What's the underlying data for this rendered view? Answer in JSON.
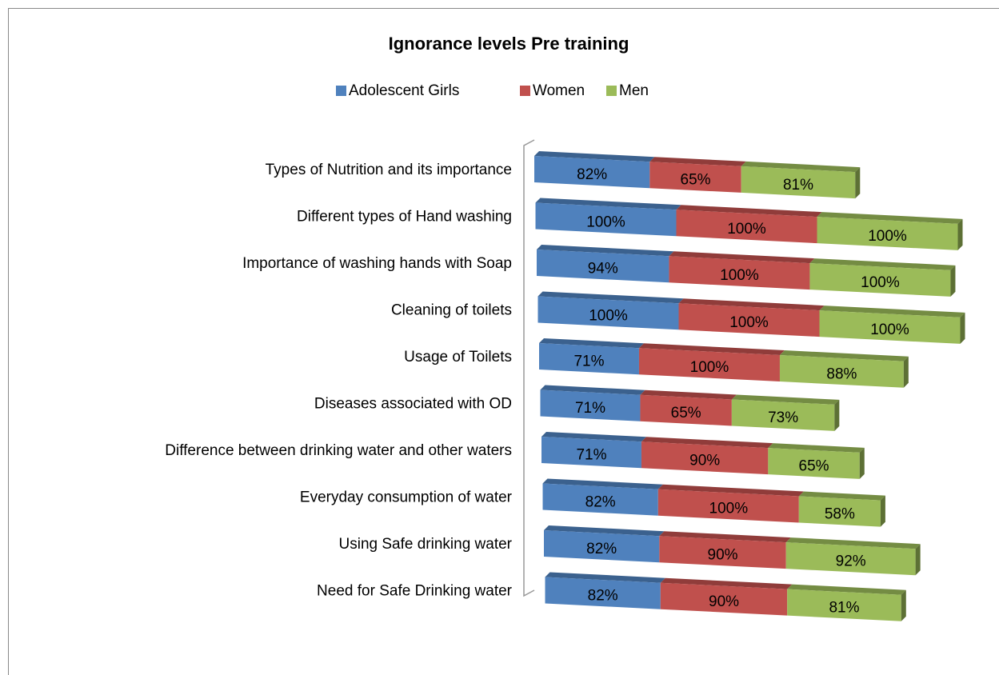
{
  "chart_data": {
    "type": "bar3d_stacked_horizontal",
    "title": "Ignorance levels Pre training",
    "legend": "top",
    "categories": [
      "Types of Nutrition and its importance",
      "Different types of Hand washing",
      "Importance of washing hands with Soap",
      "Cleaning of toilets",
      "Usage of Toilets",
      "Diseases associated with OD",
      "Difference between drinking water and other waters",
      "Everyday consumption of water",
      "Using Safe drinking water",
      "Need for Safe Drinking water"
    ],
    "series": [
      {
        "name": "Adolescent  Girls",
        "color": "#4f81bd",
        "values": [
          82,
          100,
          94,
          100,
          71,
          71,
          71,
          82,
          82,
          82
        ],
        "value_labels": [
          "82%",
          "100%",
          "94%",
          "100%",
          "71%",
          "71%",
          "71%",
          "82%",
          "82%",
          "82%"
        ]
      },
      {
        "name": "Women",
        "color": "#c0504d",
        "values": [
          65,
          100,
          100,
          100,
          100,
          65,
          90,
          100,
          90,
          90
        ],
        "value_labels": [
          "65%",
          "100%",
          "100%",
          "100%",
          "100%",
          "65%",
          "90%",
          "100%",
          "90%",
          "90%"
        ]
      },
      {
        "name": "Men",
        "color": "#9bbb59",
        "values": [
          81,
          100,
          100,
          100,
          88,
          73,
          65,
          58,
          92,
          81
        ],
        "value_labels": [
          "81%",
          "100%",
          "100%",
          "100%",
          "88%",
          "73%",
          "65%",
          "58%",
          "92%",
          "81%"
        ]
      }
    ]
  }
}
